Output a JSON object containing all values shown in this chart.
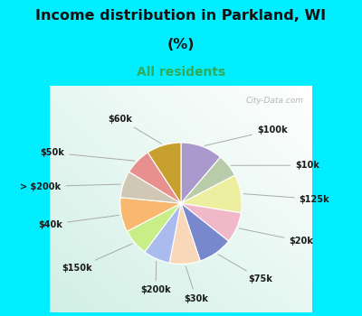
{
  "title_line1": "Income distribution in Parkland, WI",
  "title_line2": "(%)",
  "subtitle": "All residents",
  "title_color": "#111111",
  "subtitle_color": "#33aa55",
  "bg_cyan": "#00eeff",
  "watermark": "City-Data.com",
  "slices": [
    {
      "label": "$100k",
      "value": 11,
      "color": "#aa99cc"
    },
    {
      "label": "$10k",
      "value": 6,
      "color": "#b8ccaa"
    },
    {
      "label": "$125k",
      "value": 10,
      "color": "#eeeea0"
    },
    {
      "label": "$20k",
      "value": 8,
      "color": "#f0b8c8"
    },
    {
      "label": "$75k",
      "value": 9,
      "color": "#7788cc"
    },
    {
      "label": "$30k",
      "value": 8,
      "color": "#f8d8b8"
    },
    {
      "label": "$200k",
      "value": 7,
      "color": "#aabbee"
    },
    {
      "label": "$150k",
      "value": 7,
      "color": "#c8ee88"
    },
    {
      "label": "$40k",
      "value": 9,
      "color": "#f8b870"
    },
    {
      "label": "> $200k",
      "value": 7,
      "color": "#d0c8b4"
    },
    {
      "label": "$50k",
      "value": 7,
      "color": "#e89090"
    },
    {
      "label": "$60k",
      "value": 9,
      "color": "#c8a030"
    }
  ],
  "figsize": [
    4.0,
    3.5
  ],
  "dpi": 100
}
